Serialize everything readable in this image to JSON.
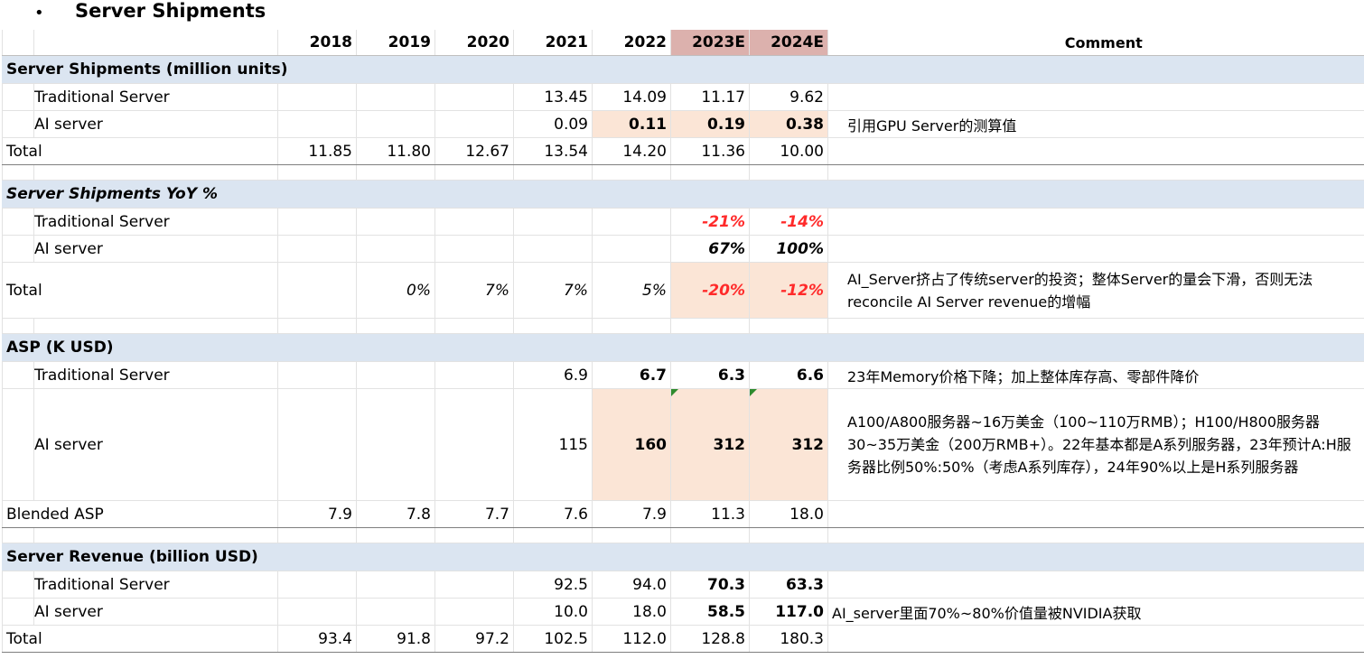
{
  "heading": {
    "bullet": "•",
    "title": "Server Shipments"
  },
  "columns": [
    "2018",
    "2019",
    "2020",
    "2021",
    "2022",
    "2023E",
    "2024E"
  ],
  "comment_header": "Comment",
  "colors": {
    "estimate_header": "#dcb1ad",
    "section_band": "#dbe5f1",
    "highlight": "#fbe5d6",
    "negative": "#ff2a2a"
  },
  "sections": {
    "shipments": {
      "title": "Server Shipments (million units)",
      "traditional": {
        "label": "Traditional Server",
        "values": [
          "",
          "",
          "",
          "13.45",
          "14.09",
          "11.17",
          "9.62"
        ],
        "comment": ""
      },
      "ai": {
        "label": "AI server",
        "values": [
          "",
          "",
          "",
          "0.09",
          "0.11",
          "0.19",
          "0.38"
        ],
        "comment": "引用GPU Server的测算值"
      },
      "total": {
        "label": "Total",
        "values": [
          "11.85",
          "11.80",
          "12.67",
          "13.54",
          "14.20",
          "11.36",
          "10.00"
        ],
        "comment": ""
      }
    },
    "yoy": {
      "title": "Server Shipments YoY %",
      "traditional": {
        "label": "Traditional Server",
        "values": [
          "",
          "",
          "",
          "",
          "",
          "-21%",
          "-14%"
        ],
        "comment": ""
      },
      "ai": {
        "label": "AI server",
        "values": [
          "",
          "",
          "",
          "",
          "",
          "67%",
          "100%"
        ],
        "comment": ""
      },
      "total": {
        "label": "Total",
        "values": [
          "",
          "0%",
          "7%",
          "7%",
          "5%",
          "-20%",
          "-12%"
        ],
        "comment": "AI_Server挤占了传统server的投资；整体Server的量会下滑，否则无法reconcile AI Server revenue的增幅"
      }
    },
    "asp": {
      "title": "ASP (K USD)",
      "traditional": {
        "label": "Traditional Server",
        "values": [
          "",
          "",
          "",
          "6.9",
          "6.7",
          "6.3",
          "6.6"
        ],
        "comment": "23年Memory价格下降；加上整体库存高、零部件降价"
      },
      "ai": {
        "label": "AI server",
        "values": [
          "",
          "",
          "",
          "115",
          "160",
          "312",
          "312"
        ],
        "comment": "A100/A800服务器~16万美金（100~110万RMB）；H100/H800服务器30~35万美金（200万RMB+）。22年基本都是A系列服务器，23年预计A:H服务器比例50%:50%（考虑A系列库存），24年90%以上是H系列服务器"
      },
      "blended": {
        "label": "Blended ASP",
        "values": [
          "7.9",
          "7.8",
          "7.7",
          "7.6",
          "7.9",
          "11.3",
          "18.0"
        ],
        "comment": ""
      }
    },
    "revenue": {
      "title": "Server Revenue (billion USD)",
      "traditional": {
        "label": "Traditional Server",
        "values": [
          "",
          "",
          "",
          "92.5",
          "94.0",
          "70.3",
          "63.3"
        ],
        "comment": ""
      },
      "ai": {
        "label": "AI server",
        "values": [
          "",
          "",
          "",
          "10.0",
          "18.0",
          "58.5",
          "117.0"
        ],
        "comment": "AI_server里面70%~80%价值量被NVIDIA获取"
      },
      "total": {
        "label": "Total",
        "values": [
          "93.4",
          "91.8",
          "97.2",
          "102.5",
          "112.0",
          "128.8",
          "180.3"
        ],
        "comment": ""
      }
    }
  }
}
